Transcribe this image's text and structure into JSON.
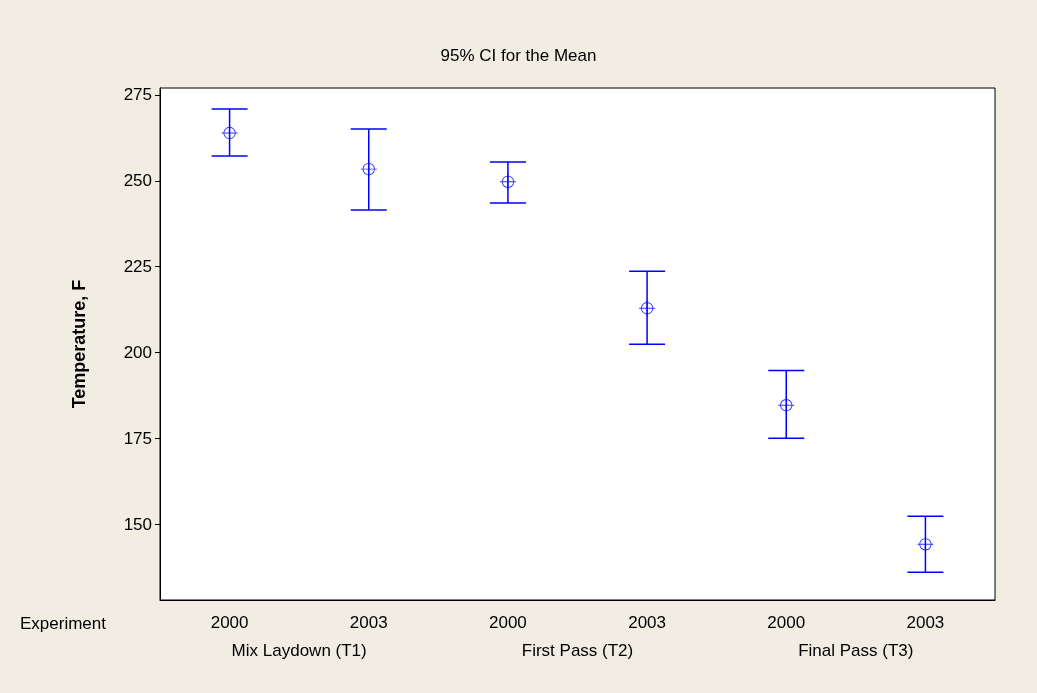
{
  "chart_data": {
    "type": "scatter",
    "title": "95% CI for the Mean",
    "ylabel": "Temperature, F",
    "xlabel": "Experiment",
    "categories": [
      "2000",
      "2003",
      "2000",
      "2003",
      "2000",
      "2003"
    ],
    "series": [
      {
        "color": "#0000ff",
        "values": [
          263.9,
          253.4,
          249.7,
          212.9,
          184.7,
          144.2
        ],
        "errors": [
          [
            257.2,
            270.9
          ],
          [
            241.5,
            265.1
          ],
          [
            243.5,
            255.5
          ],
          [
            202.4,
            223.7
          ],
          [
            175.1,
            194.8
          ],
          [
            136.1,
            152.4
          ]
        ]
      }
    ],
    "annotations": [
      "Mix Laydown (T1)",
      "First Pass (T2)",
      "Final Pass (T3)"
    ],
    "ylim": [
      128,
      277
    ],
    "yticks": [
      150,
      175,
      200,
      225,
      250,
      275
    ],
    "marker": "circle",
    "grid": false
  }
}
